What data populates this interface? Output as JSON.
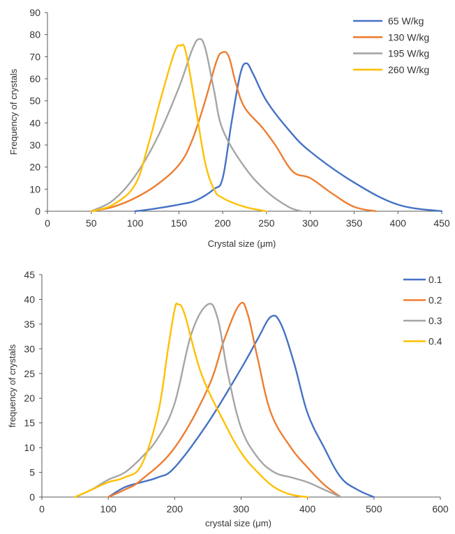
{
  "colors": {
    "blue": "#4472C4",
    "orange": "#ED7D31",
    "gray": "#A5A5A5",
    "gold": "#FFC000"
  },
  "chart_data": [
    {
      "type": "line",
      "title": "",
      "xlabel": "Crystal size (μm)",
      "ylabel": "Frequency of crystals",
      "xlim": [
        0,
        450
      ],
      "ylim": [
        0,
        90
      ],
      "xticks": [
        0,
        50,
        100,
        150,
        200,
        250,
        300,
        350,
        400,
        450
      ],
      "yticks": [
        0,
        10,
        20,
        30,
        40,
        50,
        60,
        70,
        80,
        90
      ],
      "grid": false,
      "legend_position": "top-right",
      "series": [
        {
          "name": "65 W/kg",
          "color": "#4472C4",
          "points": [
            [
              100,
              0
            ],
            [
              120,
              1
            ],
            [
              150,
              3
            ],
            [
              170,
              5
            ],
            [
              190,
              10
            ],
            [
              200,
              15
            ],
            [
              210,
              40
            ],
            [
              220,
              62
            ],
            [
              227,
              67
            ],
            [
              235,
              62
            ],
            [
              250,
              50
            ],
            [
              275,
              37
            ],
            [
              300,
              27
            ],
            [
              350,
              13
            ],
            [
              400,
              3
            ],
            [
              450,
              0
            ]
          ]
        },
        {
          "name": "130 W/kg",
          "color": "#ED7D31",
          "points": [
            [
              50,
              0
            ],
            [
              75,
              2
            ],
            [
              100,
              6
            ],
            [
              125,
              12
            ],
            [
              150,
              21
            ],
            [
              165,
              32
            ],
            [
              180,
              50
            ],
            [
              193,
              68
            ],
            [
              200,
              72
            ],
            [
              207,
              70
            ],
            [
              215,
              58
            ],
            [
              225,
              47
            ],
            [
              245,
              38
            ],
            [
              260,
              30
            ],
            [
              280,
              18
            ],
            [
              300,
              15
            ],
            [
              325,
              8
            ],
            [
              350,
              2
            ],
            [
              375,
              0
            ]
          ]
        },
        {
          "name": "195 W/kg",
          "color": "#A5A5A5",
          "points": [
            [
              50,
              0
            ],
            [
              75,
              5
            ],
            [
              100,
              16
            ],
            [
              125,
              33
            ],
            [
              150,
              56
            ],
            [
              165,
              73
            ],
            [
              173,
              78
            ],
            [
              180,
              74
            ],
            [
              190,
              55
            ],
            [
              200,
              37
            ],
            [
              225,
              20
            ],
            [
              250,
              9
            ],
            [
              275,
              2
            ],
            [
              290,
              0
            ]
          ]
        },
        {
          "name": "260 W/kg",
          "color": "#FFC000",
          "points": [
            [
              50,
              0
            ],
            [
              75,
              3
            ],
            [
              100,
              12
            ],
            [
              115,
              30
            ],
            [
              130,
              52
            ],
            [
              145,
              72
            ],
            [
              152,
              75
            ],
            [
              158,
              72
            ],
            [
              170,
              45
            ],
            [
              180,
              22
            ],
            [
              190,
              10
            ],
            [
              200,
              6
            ],
            [
              225,
              2
            ],
            [
              250,
              0
            ]
          ]
        }
      ]
    },
    {
      "type": "line",
      "title": "",
      "xlabel": "crystal size (μm)",
      "ylabel": "frequency of crystals",
      "xlim": [
        0,
        600
      ],
      "ylim": [
        0,
        45
      ],
      "xticks": [
        0,
        100,
        200,
        300,
        400,
        500,
        600
      ],
      "yticks": [
        0,
        5,
        10,
        15,
        20,
        25,
        30,
        35,
        40,
        45
      ],
      "grid": false,
      "legend_position": "top-right",
      "series": [
        {
          "name": "0.1",
          "color": "#4472C4",
          "points": [
            [
              100,
              0
            ],
            [
              125,
              2
            ],
            [
              150,
              3
            ],
            [
              175,
              4
            ],
            [
              200,
              6
            ],
            [
              250,
              15
            ],
            [
              300,
              26
            ],
            [
              325,
              32
            ],
            [
              345,
              36.5
            ],
            [
              360,
              35
            ],
            [
              380,
              27
            ],
            [
              400,
              17
            ],
            [
              425,
              10
            ],
            [
              450,
              4
            ],
            [
              475,
              1.5
            ],
            [
              500,
              0
            ]
          ]
        },
        {
          "name": "0.2",
          "color": "#ED7D31",
          "points": [
            [
              100,
              0
            ],
            [
              125,
              1.5
            ],
            [
              150,
              3.5
            ],
            [
              200,
              10
            ],
            [
              250,
              22
            ],
            [
              275,
              32
            ],
            [
              298,
              39
            ],
            [
              310,
              37
            ],
            [
              325,
              28
            ],
            [
              345,
              17
            ],
            [
              375,
              10
            ],
            [
              400,
              6
            ],
            [
              425,
              2.5
            ],
            [
              450,
              0
            ]
          ]
        },
        {
          "name": "0.3",
          "color": "#A5A5A5",
          "points": [
            [
              50,
              0
            ],
            [
              75,
              1.5
            ],
            [
              100,
              3.5
            ],
            [
              125,
              5
            ],
            [
              150,
              8
            ],
            [
              175,
              12
            ],
            [
              200,
              19
            ],
            [
              225,
              33
            ],
            [
              250,
              39
            ],
            [
              265,
              36
            ],
            [
              280,
              25
            ],
            [
              300,
              14
            ],
            [
              325,
              8
            ],
            [
              350,
              5
            ],
            [
              375,
              4
            ],
            [
              400,
              3
            ],
            [
              425,
              1.5
            ],
            [
              450,
              0
            ]
          ]
        },
        {
          "name": "0.4",
          "color": "#FFC000",
          "points": [
            [
              50,
              0
            ],
            [
              75,
              1.5
            ],
            [
              100,
              3
            ],
            [
              125,
              4
            ],
            [
              150,
              6.5
            ],
            [
              175,
              17
            ],
            [
              190,
              30
            ],
            [
              200,
              38
            ],
            [
              205,
              39
            ],
            [
              215,
              37
            ],
            [
              240,
              25
            ],
            [
              275,
              15
            ],
            [
              300,
              9
            ],
            [
              325,
              5
            ],
            [
              350,
              2
            ],
            [
              375,
              0.5
            ],
            [
              400,
              0
            ]
          ]
        }
      ]
    }
  ]
}
